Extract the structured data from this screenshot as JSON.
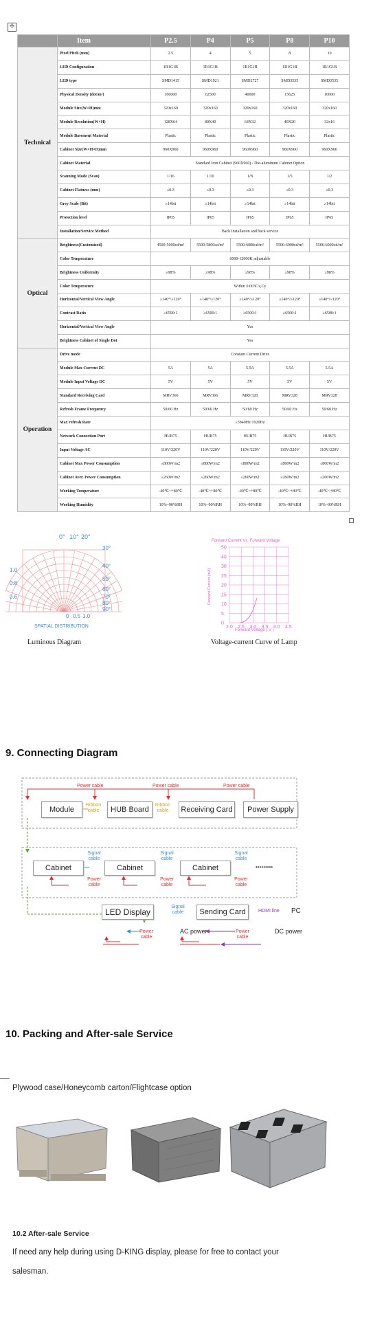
{
  "table": {
    "columns": [
      "Item",
      "P2.5",
      "P4",
      "P5",
      "P8",
      "P10"
    ],
    "groups": [
      {
        "name": "Technical",
        "rows": [
          {
            "label": "Pixel Pitch (mm)",
            "values": [
              "2.5",
              "4",
              "5",
              "8",
              "10"
            ]
          },
          {
            "label": "LED Configuration",
            "values": [
              "1R1G1B",
              "1R1G1B",
              "1R1G1B",
              "1R1G1B",
              "1R1G1B"
            ]
          },
          {
            "label": "LED type",
            "values": [
              "SMD1415",
              "SMD1921",
              "SMD2727",
              "SMD3535",
              "SMD3535"
            ]
          },
          {
            "label": "Physical Density (dot/m²)",
            "values": [
              "160000",
              "62500",
              "40000",
              "15625",
              "10000"
            ]
          },
          {
            "label": "Module Size(W×H)mm",
            "values": [
              "320x160",
              "320x160",
              "320x160",
              "320x160",
              "320x160"
            ]
          },
          {
            "label": "Module Resolution(W×H)",
            "values": [
              "128X64",
              "80X40",
              "64X32",
              "40X20",
              "32x16"
            ]
          },
          {
            "label": "Module Basement Material",
            "values": [
              "Plastic",
              "Plastic",
              "Plastic",
              "Plastic",
              "Plastic"
            ]
          },
          {
            "label": "Cabinet Size(W×H×D)mm",
            "values": [
              "960X960",
              "960X960",
              "960X960",
              "960X960",
              "960X960"
            ]
          },
          {
            "label": "Cabinet Material",
            "span": "Standard Iron Cabinet (960X960) / Die-aluminum Cabinet Option"
          },
          {
            "label": "Scanning Mode (Scan)",
            "values": [
              "1/16",
              "1/10",
              "1/8",
              "1/5",
              "1/2"
            ]
          },
          {
            "label": "Cabinet Flatness (mm)",
            "values": [
              "≤0.3",
              "≤0.3",
              "≤0.3",
              "≤0.3",
              "≤0.3"
            ]
          },
          {
            "label": "Grey Scale (Bit)",
            "values": [
              "≥14bit",
              "≥14bit",
              "≥14bit",
              "≥14bit",
              "≥14bit"
            ]
          },
          {
            "label": "Protection level",
            "values": [
              "IP65",
              "IP65",
              "IP65",
              "IP65",
              "IP65"
            ]
          },
          {
            "label": "Installation/Service Method",
            "span": "Back Installation and back service"
          }
        ]
      },
      {
        "name": "Optical",
        "rows": [
          {
            "label": "Brightness(Customized)",
            "values": [
              "4500-5000cd/m²",
              "5500-5800cd/m²",
              "5500-6000cd/m²",
              "5500-6000cd/m²",
              "5500-6000cd/m²"
            ]
          },
          {
            "label": "Color Temperature",
            "span": "6000-12000K adjustable"
          },
          {
            "label": "Brightness Uniformity",
            "values": [
              "≥98%",
              "≥98%",
              "≥98%",
              "≥98%",
              "≥98%"
            ]
          },
          {
            "label": "Color Temperature",
            "span": "Within 0.003Cx,Cy"
          },
          {
            "label": "Horizontal/Vertical View Angle",
            "tall": true,
            "values": [
              "≥140°/≥120°",
              "≥140°/≥120°",
              "≥140°/≥120°",
              "≥140°/≥120°",
              "≥140°/≥120°"
            ]
          },
          {
            "label": "Contrast Ratio",
            "values": [
              "≥6500:1",
              "≥6500:1",
              "≥6500:1",
              "≥6500:1",
              "≥6500:1"
            ]
          },
          {
            "label": "Horizontal/Vertical View Angle",
            "span": "Yes"
          },
          {
            "label": "Brightness Cabinet of Single Dot",
            "span": "Yes"
          }
        ]
      },
      {
        "name": "Operation",
        "rows": [
          {
            "label": "Drive mode",
            "span": "Constant Current Drive"
          },
          {
            "label": "Module Max Current DC",
            "values": [
              "5A",
              "5A",
              "5.5A",
              "5.5A",
              "5.5A"
            ]
          },
          {
            "label": "Module Input Voltage DC",
            "values": [
              "5V",
              "5V",
              "5V",
              "5V",
              "5V"
            ]
          },
          {
            "label": "Standard Receiving Card",
            "values": [
              "MRV366",
              "MRV366",
              "MRV328",
              "MRV328",
              "MRV328"
            ]
          },
          {
            "label": "Refresh Frame Frequency",
            "values": [
              "50/60 Hz",
              "50/60 Hz",
              "50/60 Hz",
              "50/60 Hz",
              "50/60 Hz"
            ]
          },
          {
            "label": "Max refresh Rate",
            "span": "≥3840Hz/1920Hz"
          },
          {
            "label": "Network Connection Port",
            "values": [
              "HUB75",
              "HUB75",
              "HUB75",
              "HUB75",
              "HUB75"
            ]
          },
          {
            "label": "Input Voltage AC",
            "values": [
              "110V/220V",
              "110V/220V",
              "110V/220V",
              "110V/220V",
              "110V/220V"
            ]
          },
          {
            "label": "Cabinet Max Power Consumption",
            "values": [
              "≤800W/m2",
              "≤800W/m2",
              "≤800W/m2",
              "≤800W/m2",
              "≤800W/m2"
            ]
          },
          {
            "label": "Cabinet Aver. Power Consumption",
            "values": [
              "≤260W/m2",
              "≤260W/m2",
              "≤260W/m2",
              "≤260W/m2",
              "≤260W/m2"
            ]
          },
          {
            "label": "Working Temperature",
            "values": [
              "-40℃~+80℃",
              "-40℃~+80℃",
              "-40℃~+80℃",
              "-40℃~+80℃",
              "-40℃~+80℃"
            ]
          },
          {
            "label": "Working Humidity",
            "values": [
              "10%~90%RH",
              "10%~90%RH",
              "10%~90%RH",
              "10%~90%RH",
              "10%~90%RH"
            ]
          }
        ]
      }
    ]
  },
  "luminous": {
    "caption": "Luminous Diagram",
    "top_labels": [
      "0°",
      "10°",
      "20°"
    ],
    "right_labels": [
      "30°",
      "40°",
      "50°",
      "60°",
      "70°",
      "80°",
      "90°"
    ],
    "left_labels": [
      "1.0",
      "0.8",
      "0.6"
    ],
    "bottom_labels": [
      "0",
      "0.5",
      "1.0"
    ],
    "title": "SPATIAL DISTRIBUTION",
    "color": "#f08c8c"
  },
  "curve": {
    "caption": "Voltage-current Curve of Lamp",
    "legend": "Forward Current  Vs.  Forward Voltage",
    "ylabel": "Forward Current (mA)",
    "xlabel": "Forward Voltage ( V )",
    "yticks": [
      "50",
      "40",
      "30",
      "25",
      "20",
      "15",
      "10",
      "5",
      "0"
    ],
    "xticks": [
      "2.0",
      "2.5",
      "3.0",
      "3.5",
      "4.0",
      "4.5"
    ],
    "color": "#e65ad2"
  },
  "section9": {
    "title": "9. Connecting Diagram",
    "boxes": {
      "module": "Module",
      "hub": "HUB Board",
      "receiving": "Receiving Card",
      "power": "Power Supply",
      "cab1": "Cabinet",
      "cab2": "Cabinet",
      "cab3": "Cabinet",
      "led": "LED Display",
      "sending": "Sending Card"
    },
    "labels": {
      "power_cable": "Power cable",
      "ribbon": "Ribbon cable",
      "signal": "Signal cable",
      "power": "Power cable",
      "dots": "•••••••••",
      "hdmi": "HDMI line",
      "pc": "PC",
      "ac": "AC power",
      "dc": "DC power"
    },
    "colors": {
      "red": "#e03030",
      "blue": "#3a90d8",
      "green": "#55a630",
      "orange": "#e0a020",
      "purple": "#8a3ab9"
    }
  },
  "section10": {
    "title": "10. Packing and After-sale  Service",
    "packing": "Plywood case/Honeycomb carton/Flightcase option",
    "subtitle": "10.2 After-sale Service",
    "body_line1": "If need any help during using D-KING display, please for free to contact your",
    "body_line2": "salesman."
  }
}
